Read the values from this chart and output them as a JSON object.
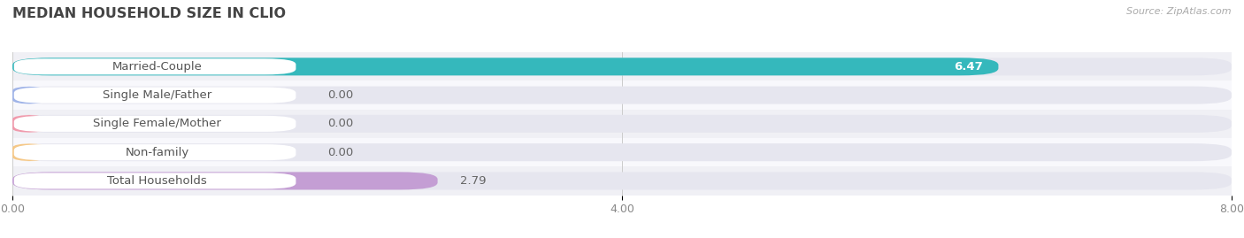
{
  "title": "MEDIAN HOUSEHOLD SIZE IN CLIO",
  "source": "Source: ZipAtlas.com",
  "categories": [
    "Married-Couple",
    "Single Male/Father",
    "Single Female/Mother",
    "Non-family",
    "Total Households"
  ],
  "values": [
    6.47,
    0.0,
    0.0,
    0.0,
    2.79
  ],
  "bar_colors": [
    "#35b8bc",
    "#a0b4e8",
    "#f09aac",
    "#f5c888",
    "#c49ed4"
  ],
  "xlim": [
    0,
    8.0
  ],
  "xticks": [
    0.0,
    4.0,
    8.0
  ],
  "xtick_labels": [
    "0.00",
    "4.00",
    "8.00"
  ],
  "bar_height": 0.62,
  "label_fontsize": 9.5,
  "title_fontsize": 11.5,
  "value_fontsize": 9.5,
  "background_color": "#ffffff",
  "row_colors": [
    "#f0f0f5",
    "#f8f8fc"
  ]
}
